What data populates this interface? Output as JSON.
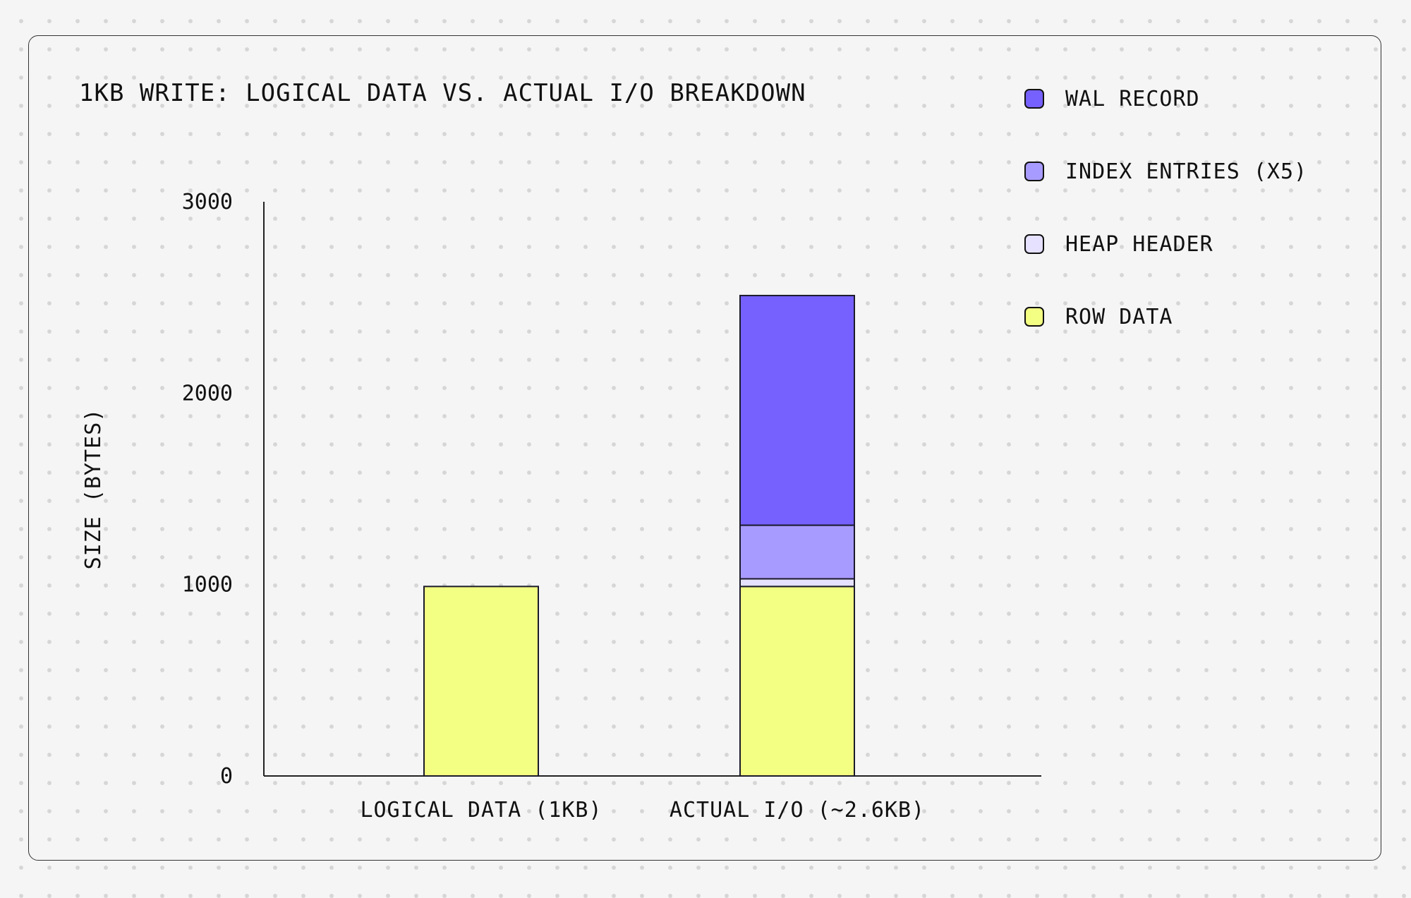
{
  "chart_data": {
    "type": "bar",
    "stacked": true,
    "title": "1KB WRITE: LOGICAL DATA VS. ACTUAL I/O BREAKDOWN",
    "xlabel": "",
    "ylabel": "SIZE (BYTES)",
    "ylim": [
      0,
      3000
    ],
    "yticks": [
      "0",
      "1000",
      "2000",
      "3000"
    ],
    "categories": [
      "LOGICAL DATA (1KB)",
      "ACTUAL I/O (~2.6KB)"
    ],
    "series": [
      {
        "name": "ROW DATA",
        "color": "#f3ff82",
        "values": [
          990,
          990
        ]
      },
      {
        "name": "HEAP HEADER",
        "color": "#e5e1ff",
        "values": [
          0,
          40
        ]
      },
      {
        "name": "INDEX ENTRIES (X5)",
        "color": "#a89bff",
        "values": [
          0,
          280
        ]
      },
      {
        "name": "WAL RECORD",
        "color": "#7661ff",
        "values": [
          0,
          1200
        ]
      }
    ],
    "legend": {
      "placement": "top-right",
      "order": [
        "WAL RECORD",
        "INDEX ENTRIES (X5)",
        "HEAP HEADER",
        "ROW DATA"
      ]
    },
    "grid": false
  }
}
